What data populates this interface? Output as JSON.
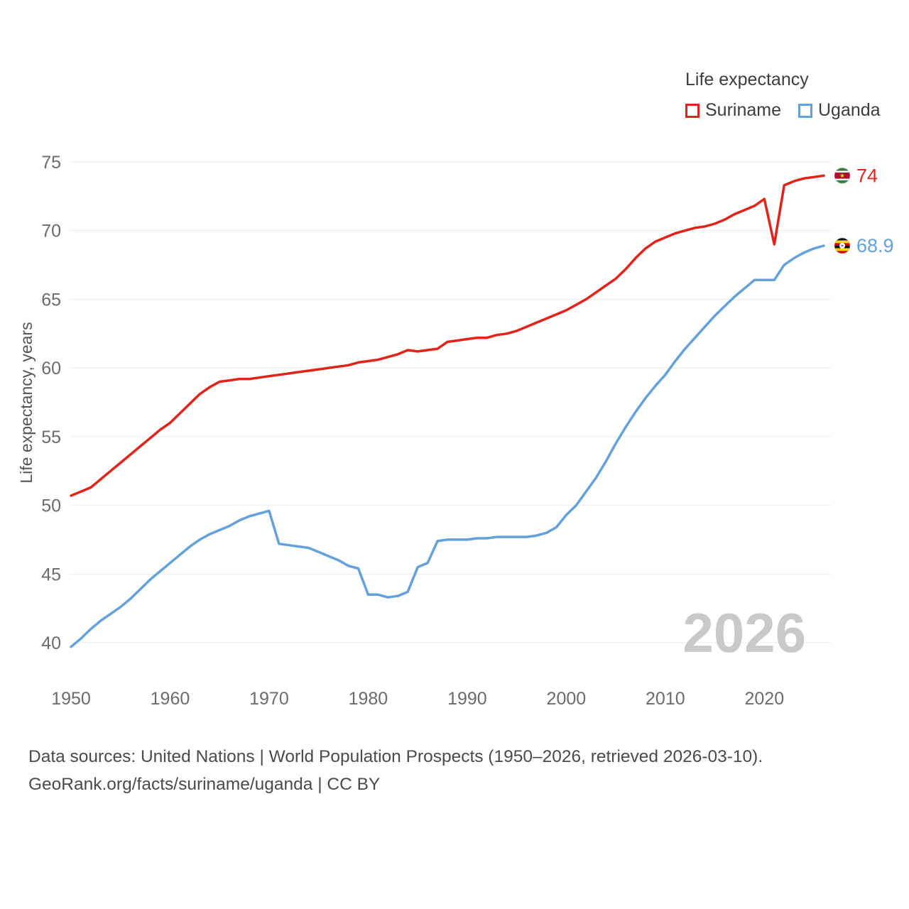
{
  "legend": {
    "title": "Life expectancy"
  },
  "watermark": "2026",
  "footer": {
    "line1": "Data sources: United Nations | World Population Prospects (1950–2026, retrieved 2026-03-10).",
    "line2": "GeoRank.org/facts/suriname/uganda | CC BY"
  },
  "chart_data": {
    "type": "line",
    "title": "Life expectancy",
    "ylabel": "Life expectancy, years",
    "xlabel": "",
    "grid": "horizontal",
    "legend_position": "top-right",
    "xlim": [
      1950,
      2026
    ],
    "ylim": [
      40,
      75
    ],
    "xticks": [
      1950,
      1960,
      1970,
      1980,
      1990,
      2000,
      2010,
      2020
    ],
    "yticks": [
      40,
      45,
      50,
      55,
      60,
      65,
      70,
      75
    ],
    "x": [
      1950,
      1951,
      1952,
      1953,
      1954,
      1955,
      1956,
      1957,
      1958,
      1959,
      1960,
      1961,
      1962,
      1963,
      1964,
      1965,
      1966,
      1967,
      1968,
      1969,
      1970,
      1971,
      1972,
      1973,
      1974,
      1975,
      1976,
      1977,
      1978,
      1979,
      1980,
      1981,
      1982,
      1983,
      1984,
      1985,
      1986,
      1987,
      1988,
      1989,
      1990,
      1991,
      1992,
      1993,
      1994,
      1995,
      1996,
      1997,
      1998,
      1999,
      2000,
      2001,
      2002,
      2003,
      2004,
      2005,
      2006,
      2007,
      2008,
      2009,
      2010,
      2011,
      2012,
      2013,
      2014,
      2015,
      2016,
      2017,
      2018,
      2019,
      2020,
      2021,
      2022,
      2023,
      2024,
      2025,
      2026
    ],
    "series": [
      {
        "name": "Suriname",
        "color": "#e2231a",
        "end_label": "74",
        "values": [
          50.7,
          51.0,
          51.3,
          51.9,
          52.5,
          53.1,
          53.7,
          54.3,
          54.9,
          55.5,
          56.0,
          56.7,
          57.4,
          58.1,
          58.6,
          59.0,
          59.1,
          59.2,
          59.2,
          59.3,
          59.4,
          59.5,
          59.6,
          59.7,
          59.8,
          59.9,
          60.0,
          60.1,
          60.2,
          60.4,
          60.5,
          60.6,
          60.8,
          61.0,
          61.3,
          61.2,
          61.3,
          61.4,
          61.9,
          62.0,
          62.1,
          62.2,
          62.2,
          62.4,
          62.5,
          62.7,
          63.0,
          63.3,
          63.6,
          63.9,
          64.2,
          64.6,
          65.0,
          65.5,
          66.0,
          66.5,
          67.2,
          68.0,
          68.7,
          69.2,
          69.5,
          69.8,
          70.0,
          70.2,
          70.3,
          70.5,
          70.8,
          71.2,
          71.5,
          71.8,
          72.3,
          69.0,
          73.3,
          73.6,
          73.8,
          73.9,
          74.0
        ]
      },
      {
        "name": "Uganda",
        "color": "#64a1db",
        "end_label": "68.9",
        "values": [
          39.7,
          40.3,
          41.0,
          41.6,
          42.1,
          42.6,
          43.2,
          43.9,
          44.6,
          45.2,
          45.8,
          46.4,
          47.0,
          47.5,
          47.9,
          48.2,
          48.5,
          48.9,
          49.2,
          49.4,
          49.6,
          47.2,
          47.1,
          47.0,
          46.9,
          46.6,
          46.3,
          46.0,
          45.6,
          45.4,
          43.5,
          43.5,
          43.3,
          43.4,
          43.7,
          45.5,
          45.8,
          47.4,
          47.5,
          47.5,
          47.5,
          47.6,
          47.6,
          47.7,
          47.7,
          47.7,
          47.7,
          47.8,
          48.0,
          48.4,
          49.3,
          50.0,
          51.0,
          52.0,
          53.2,
          54.5,
          55.7,
          56.8,
          57.8,
          58.7,
          59.5,
          60.5,
          61.4,
          62.2,
          63.0,
          63.8,
          64.5,
          65.2,
          65.8,
          66.4,
          66.4,
          66.4,
          67.5,
          68.0,
          68.4,
          68.7,
          68.9
        ]
      }
    ]
  }
}
